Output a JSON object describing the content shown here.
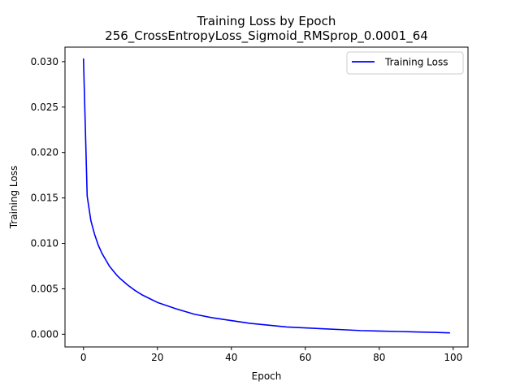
{
  "chart_data": {
    "type": "line",
    "title": "Training Loss by Epoch",
    "subtitle": "256_CrossEntropyLoss_Sigmoid_RMSprop_0.0001_64",
    "xlabel": "Epoch",
    "ylabel": "Training Loss",
    "xlim": [
      -5,
      104
    ],
    "ylim": [
      -0.0014,
      0.0316
    ],
    "xticks": [
      0,
      20,
      40,
      60,
      80,
      100
    ],
    "yticks": [
      0.0,
      0.005,
      0.01,
      0.015,
      0.02,
      0.025,
      0.03
    ],
    "xtick_labels": [
      "0",
      "20",
      "40",
      "60",
      "80",
      "100"
    ],
    "ytick_labels": [
      "0.000",
      "0.005",
      "0.010",
      "0.015",
      "0.020",
      "0.025",
      "0.030"
    ],
    "grid": false,
    "legend": {
      "position": "top-right"
    },
    "series": [
      {
        "name": "Training Loss",
        "color": "#0000ff",
        "x": [
          0,
          1,
          2,
          3,
          4,
          5,
          6,
          7,
          8,
          9,
          10,
          12,
          14,
          16,
          18,
          20,
          25,
          30,
          35,
          40,
          45,
          50,
          55,
          60,
          65,
          70,
          75,
          80,
          85,
          90,
          95,
          99
        ],
        "y": [
          0.0303,
          0.0152,
          0.0125,
          0.011,
          0.0098,
          0.0089,
          0.0082,
          0.0075,
          0.007,
          0.0065,
          0.0061,
          0.0054,
          0.0048,
          0.0043,
          0.0039,
          0.0035,
          0.0028,
          0.0022,
          0.0018,
          0.0015,
          0.0012,
          0.001,
          0.0008,
          0.0007,
          0.0006,
          0.0005,
          0.0004,
          0.00035,
          0.0003,
          0.00025,
          0.0002,
          0.00015
        ]
      }
    ]
  }
}
